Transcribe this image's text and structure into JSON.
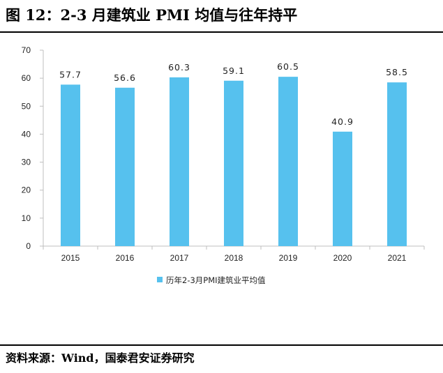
{
  "figure": {
    "title": "图 12：2-3 月建筑业 PMI 均值与往年持平",
    "source": "资料来源：Wind，国泰君安证券研究"
  },
  "chart_data": {
    "type": "bar",
    "categories": [
      "2015",
      "2016",
      "2017",
      "2018",
      "2019",
      "2020",
      "2021"
    ],
    "series": [
      {
        "name": "历年2-3月PMI建筑业平均值",
        "values": [
          57.7,
          56.6,
          60.3,
          59.1,
          60.5,
          40.9,
          58.5
        ],
        "data_labels": [
          "57.7",
          "56.6",
          "60.3",
          "59.1",
          "60.5",
          "40.9",
          "58.5"
        ]
      }
    ],
    "ylim": [
      0,
      70
    ],
    "yticks": [
      0,
      10,
      20,
      30,
      40,
      50,
      60,
      70
    ],
    "xlabel": "",
    "ylabel": "",
    "grid": false,
    "legend_position": "bottom",
    "colors": {
      "bar": "#56C1EE",
      "axis": "#BFBFBF"
    }
  }
}
